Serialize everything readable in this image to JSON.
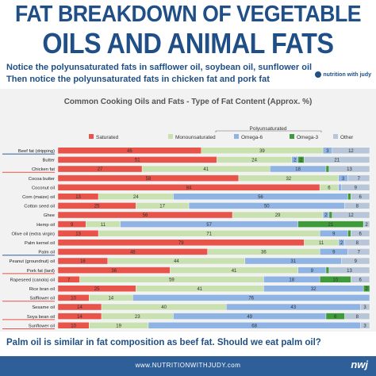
{
  "header": {
    "title_line1": "FAT BREAKDOWN OF VEGETABLE",
    "title_line2": "OILS AND ANIMAL FATS",
    "subtitle_line1": "Notice the polyunsaturated fats in safflower oil, soybean oil, sunflower oil",
    "subtitle_line2": "Then notice the polyunsaturated fats in chicken fat and pork fat",
    "brand": "nutrition with judy"
  },
  "footer": {
    "question": "Palm oil is similar in fat composition as beef fat. Should we eat palm oil?",
    "url": "www.NUTRITIONWITHJUDY.com",
    "logo": "nwj"
  },
  "colors": {
    "saturated": "#e8534a",
    "monounsaturated": "#c9e1b0",
    "omega6": "#8fb4e3",
    "omega3": "#3f9a3a",
    "other": "#b8c6d9",
    "title_blue": "#1f4f86",
    "underline_blue": "#2e5f99",
    "underline_red": "#e8534a"
  },
  "chart_data": {
    "type": "bar",
    "orientation": "horizontal",
    "stacked": true,
    "title": "Common Cooking Oils and Fats - Type of Fat Content (Approx. %)",
    "legend_group_label": "Polyunsaturated",
    "legend_placement": "top",
    "xlim": [
      0,
      100
    ],
    "categories": [
      "Beef fat (dripping)",
      "Butter",
      "Chicken fat",
      "Cocoa butter",
      "Coconut oil",
      "Corn (maize) oil",
      "Cotton seed oil",
      "Ghee",
      "Hemp oil",
      "Olive oil (extra virgin)",
      "Palm kernel oil",
      "Palm oil",
      "Peanut (groundnut) oil",
      "Pork fat (lard)",
      "Rapeseed (canola) oil",
      "Rice bran oil",
      "Safflower oil",
      "Sesame oil",
      "Soya bean oil",
      "Sunflower oil"
    ],
    "underline": [
      "blue",
      "",
      "red",
      "",
      "",
      "",
      "",
      "",
      "",
      "",
      "",
      "blue",
      "",
      "red",
      "",
      "",
      "red",
      "",
      "red",
      "red"
    ],
    "series": [
      {
        "name": "Saturated",
        "values": [
          46,
          51,
          27,
          58,
          84,
          13,
          25,
          56,
          9,
          13,
          79,
          48,
          16,
          36,
          7,
          25,
          10,
          14,
          14,
          10
        ]
      },
      {
        "name": "Monounsaturated",
        "values": [
          39,
          24,
          41,
          32,
          6,
          24,
          17,
          29,
          11,
          71,
          11,
          36,
          44,
          41,
          59,
          41,
          14,
          40,
          23,
          19
        ]
      },
      {
        "name": "Omega-6",
        "values": [
          3,
          2,
          18,
          3,
          1,
          56,
          50,
          2,
          57,
          9,
          2,
          9,
          31,
          9,
          18,
          32,
          76,
          43,
          49,
          68
        ]
      },
      {
        "name": "Omega-3",
        "values": [
          0,
          2,
          1,
          0,
          0,
          1,
          0,
          1,
          21,
          1,
          0,
          0,
          0,
          1,
          10,
          2,
          0,
          0,
          6,
          0
        ]
      },
      {
        "name": "Other",
        "values": [
          12,
          21,
          13,
          7,
          9,
          6,
          8,
          12,
          2,
          6,
          8,
          7,
          9,
          13,
          6,
          0,
          0,
          3,
          8,
          3
        ]
      }
    ]
  }
}
